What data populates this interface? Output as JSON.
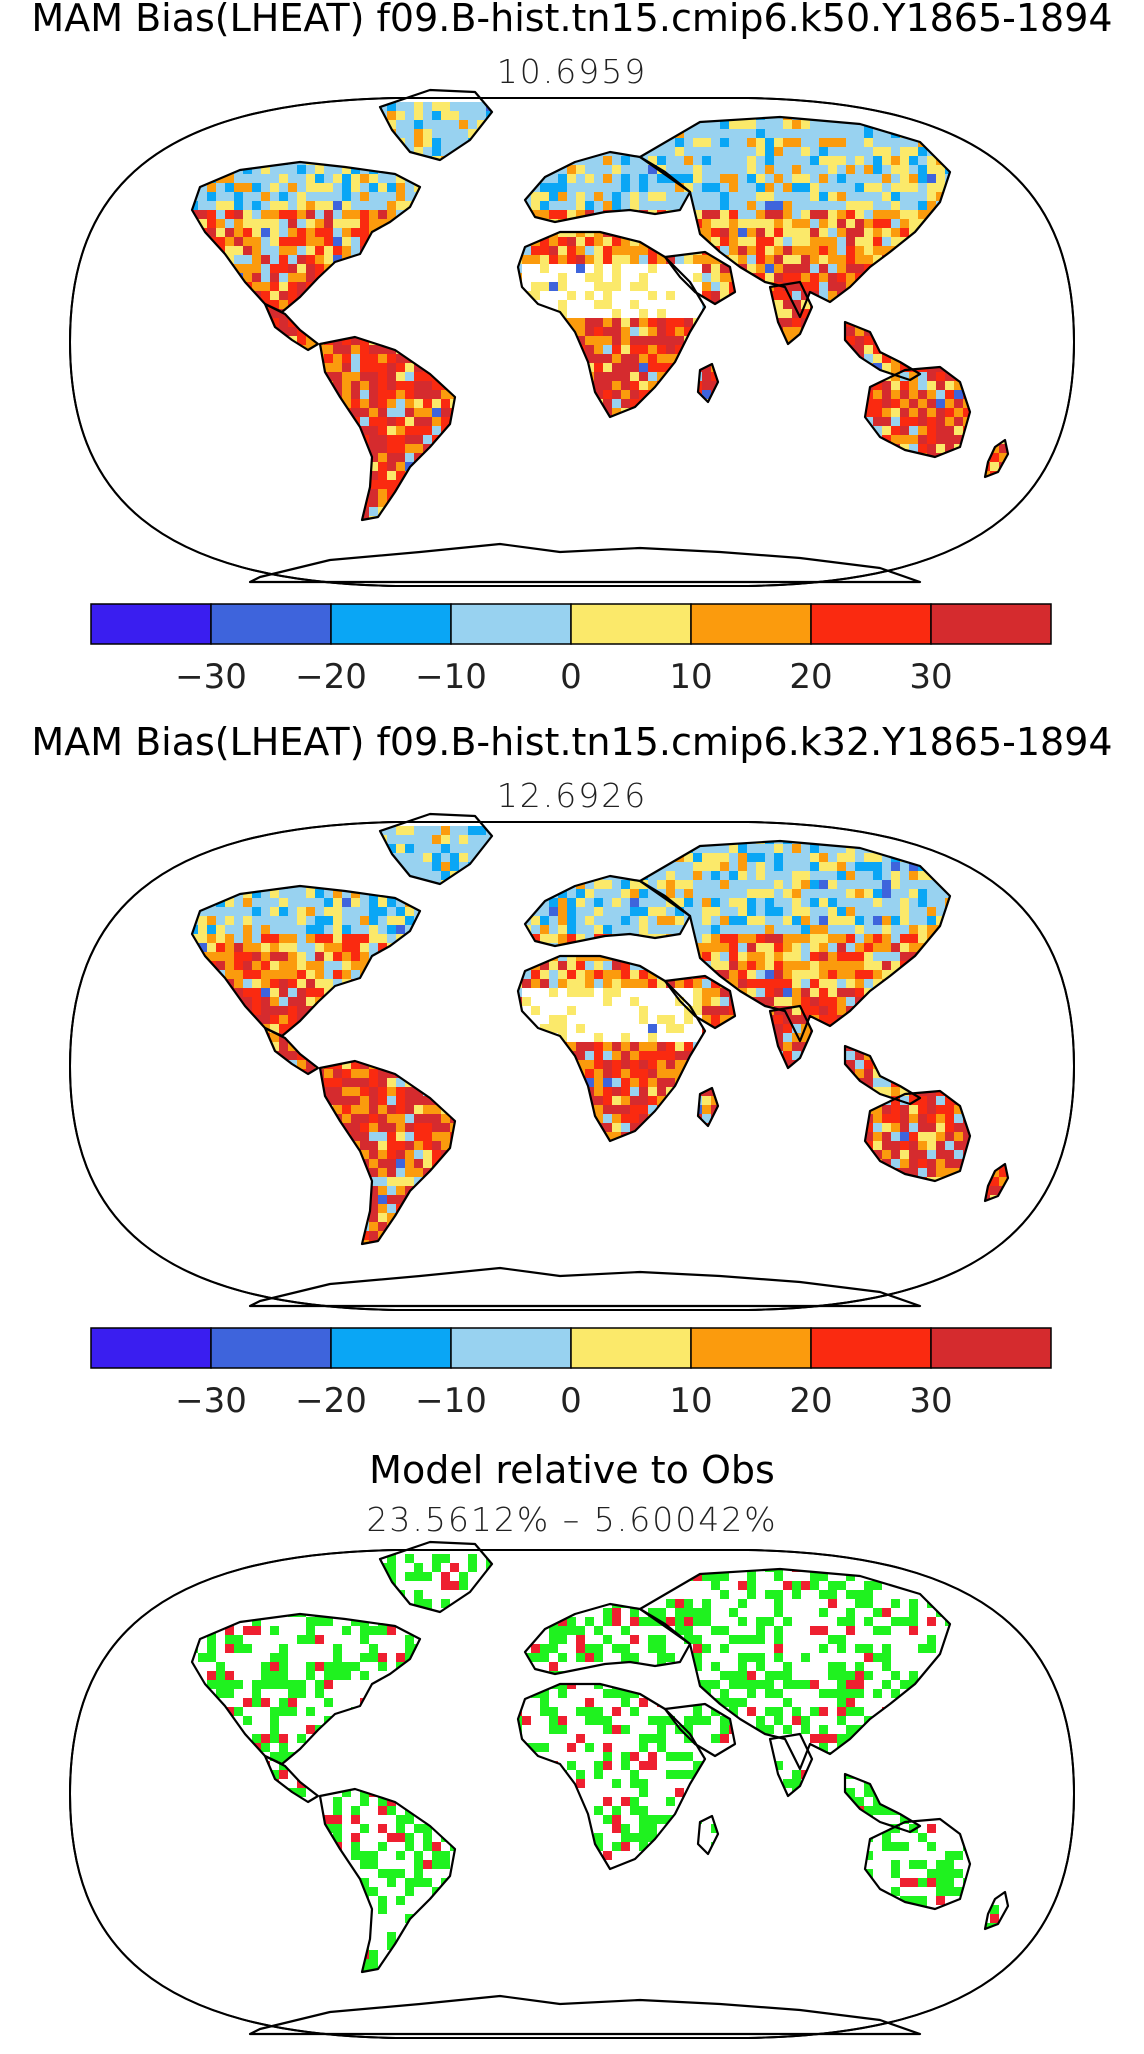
{
  "panels": [
    {
      "title": "MAM Bias(LHEAT) f09.B-hist.tn15.cmip6.k50.Y1865-1894",
      "subtitle": "10.6959",
      "fields": {
        "tropics": "warm",
        "north_mid": "mixed",
        "north_high": "cool"
      }
    },
    {
      "title": "MAM Bias(LHEAT) f09.B-hist.tn15.cmip6.k32.Y1865-1894",
      "subtitle": "12.6926",
      "fields": {
        "tropics": "warm",
        "north_mid": "mixed",
        "north_high": "cool"
      }
    },
    {
      "title": "Model relative to Obs",
      "subtitle": "23.5612% – 5.60042%",
      "fields": {
        "improved": "green",
        "degraded": "red"
      }
    }
  ],
  "colorbar": {
    "colors": [
      "#3a1ef0",
      "#3e64dc",
      "#0aa6f5",
      "#98d2f0",
      "#fbe96a",
      "#fb9b0d",
      "#fa2a10",
      "#d52b2e"
    ],
    "tick_labels": [
      "−30",
      "−20",
      "−10",
      "0",
      "10",
      "20",
      "30"
    ]
  },
  "legend_colors": {
    "improved": "#1ff21f",
    "degraded": "#ee2030"
  }
}
